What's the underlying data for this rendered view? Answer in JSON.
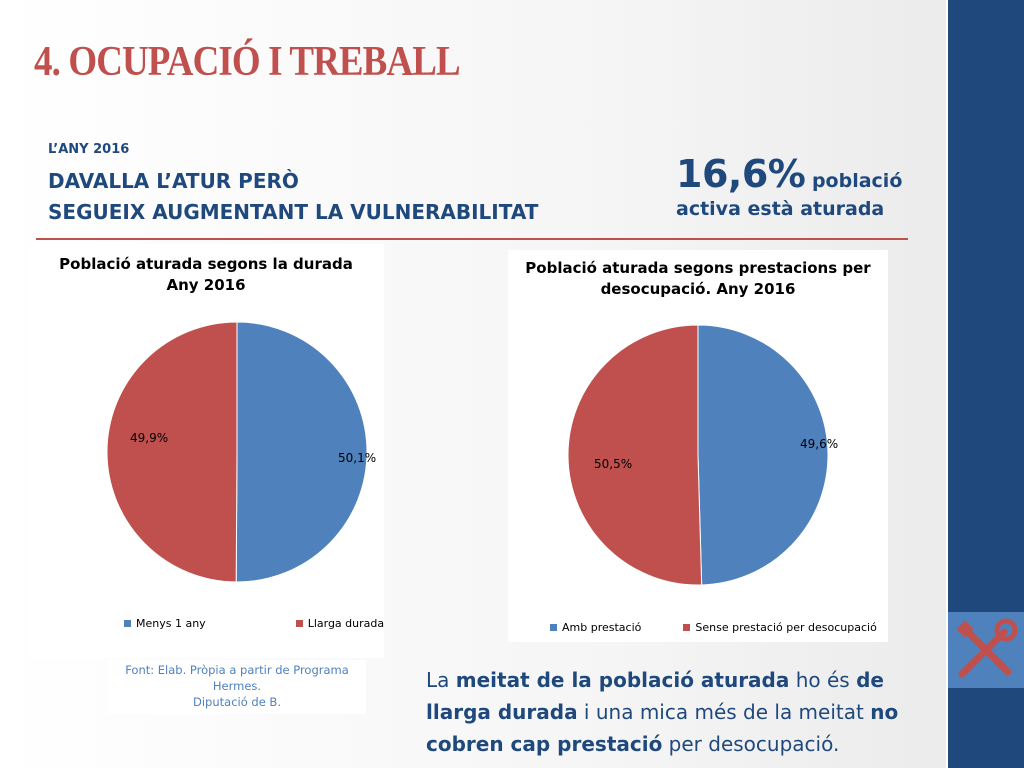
{
  "slide": {
    "title": "4. OCUPACIÓ I TREBALL",
    "year_label": "L’ANY 2016",
    "headline_lines": [
      "DAVALLA L’ATUR PERÒ",
      "SEGUEIX AUGMENTANT LA VULNERABILITAT"
    ],
    "stat_value": "16,6%",
    "stat_text_1": " població",
    "stat_text_2": "activa està aturada",
    "source_lines": [
      "Font: Elab. Pròpia a partir de Programa Hermes.",
      "Diputació de B."
    ],
    "conclusion_parts": [
      {
        "text": "La ",
        "bold": false
      },
      {
        "text": "meitat de la població aturada",
        "bold": true
      },
      {
        "text": " ho és ",
        "bold": false
      },
      {
        "text": "de llarga durada",
        "bold": true
      },
      {
        "text": " i una mica més de la meitat ",
        "bold": false
      },
      {
        "text": "no cobren cap prestació",
        "bold": true
      },
      {
        "text": " per desocupació.",
        "bold": false
      }
    ]
  },
  "colors": {
    "blue": "#4f81bd",
    "red": "#c0504d",
    "navy": "#1f497d",
    "accent": "#c0504d"
  },
  "icons": {
    "tools": "wrench-screwdriver-icon"
  },
  "chart_data": [
    {
      "type": "pie",
      "title_lines": [
        "Població aturada segons la durada",
        "Any 2016"
      ],
      "categories": [
        "Menys 1 any",
        "Llarga durada"
      ],
      "values": [
        50.1,
        49.9
      ],
      "labels": [
        "50,1%",
        "49,9%"
      ],
      "colors": [
        "#4f81bd",
        "#c0504d"
      ],
      "legend": "bottom"
    },
    {
      "type": "pie",
      "title_lines": [
        "Població aturada segons prestacions per",
        "desocupació. Any 2016"
      ],
      "categories": [
        "Amb prestació",
        "Sense prestació per desocupació"
      ],
      "values": [
        49.6,
        50.5
      ],
      "labels": [
        "49,6%",
        "50,5%"
      ],
      "colors": [
        "#4f81bd",
        "#c0504d"
      ],
      "legend": "bottom"
    }
  ]
}
